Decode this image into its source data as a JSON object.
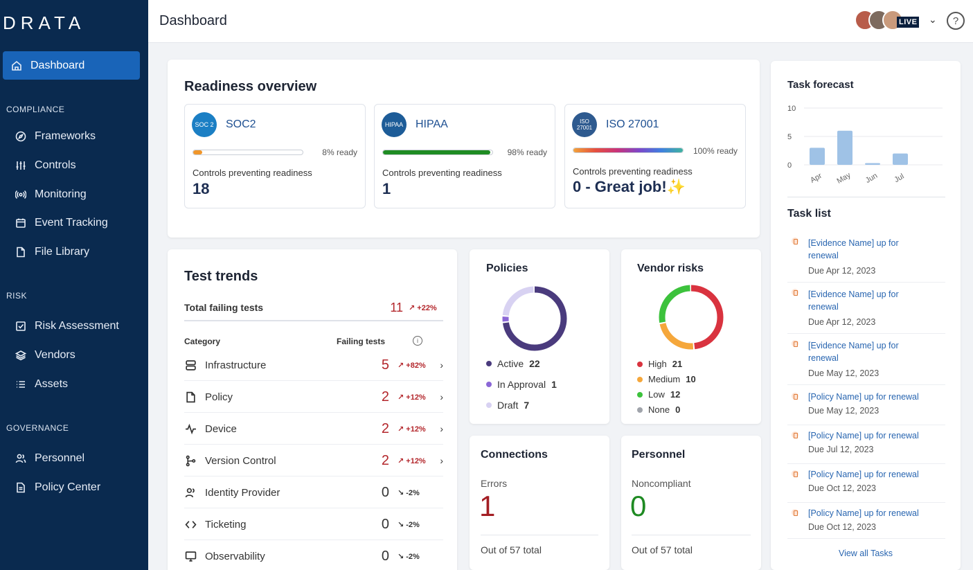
{
  "sidebar": {
    "logo": "DRATA",
    "active": {
      "label": "Dashboard",
      "icon": "home-icon"
    },
    "sections": [
      {
        "title": "COMPLIANCE",
        "items": [
          {
            "label": "Frameworks",
            "icon": "compass-icon"
          },
          {
            "label": "Controls",
            "icon": "sliders-icon"
          },
          {
            "label": "Monitoring",
            "icon": "broadcast-icon"
          },
          {
            "label": "Event Tracking",
            "icon": "calendar-icon"
          },
          {
            "label": "File Library",
            "icon": "file-icon"
          }
        ]
      },
      {
        "title": "RISK",
        "items": [
          {
            "label": "Risk Assessment",
            "icon": "checkbox-icon"
          },
          {
            "label": "Vendors",
            "icon": "layers-icon"
          },
          {
            "label": "Assets",
            "icon": "list-icon"
          }
        ]
      },
      {
        "title": "GOVERNANCE",
        "items": [
          {
            "label": "Personnel",
            "icon": "people-icon"
          },
          {
            "label": "Policy Center",
            "icon": "document-icon"
          }
        ]
      }
    ]
  },
  "header": {
    "title": "Dashboard",
    "live": "LIVE",
    "help": "?"
  },
  "readiness": {
    "title": "Readiness overview",
    "frameworks": [
      {
        "badge": "SOC 2",
        "name": "SOC2",
        "pct": "8% ready",
        "progress": 0.08,
        "color": "#f0962a",
        "sub": "Controls preventing readiness",
        "count": "18"
      },
      {
        "badge": "HIPAA",
        "name": "HIPAA",
        "pct": "98% ready",
        "progress": 0.98,
        "color": "#1f8c23",
        "sub": "Controls preventing readiness",
        "count": "1"
      },
      {
        "badge": "ISO 27001",
        "name": "ISO 27001",
        "pct": "100% ready",
        "progress": 1.0,
        "color": "rainbow",
        "sub": "Controls preventing readiness",
        "count": "0 - Great job!✨"
      }
    ]
  },
  "trends": {
    "title": "Test trends",
    "total_label": "Total failing tests",
    "total_count": "11",
    "total_trend": "↗ +22%",
    "col_category": "Category",
    "col_failing": "Failing tests",
    "rows": [
      {
        "label": "Infrastructure",
        "count": "5",
        "trend": "↗ +82%",
        "icon": "server-icon",
        "failing": true
      },
      {
        "label": "Policy",
        "count": "2",
        "trend": "↗ +12%",
        "icon": "file-icon",
        "failing": true
      },
      {
        "label": "Device",
        "count": "2",
        "trend": "↗ +12%",
        "icon": "pulse-icon",
        "failing": true
      },
      {
        "label": "Version Control",
        "count": "2",
        "trend": "↗ +12%",
        "icon": "branch-icon",
        "failing": true
      },
      {
        "label": "Identity Provider",
        "count": "0",
        "trend": "↘ -2%",
        "icon": "people-icon",
        "failing": false
      },
      {
        "label": "Ticketing",
        "count": "0",
        "trend": "↘ -2%",
        "icon": "code-icon",
        "failing": false
      },
      {
        "label": "Observability",
        "count": "0",
        "trend": "↘ -2%",
        "icon": "monitor-icon",
        "failing": false
      }
    ]
  },
  "policies": {
    "title": "Policies",
    "items": [
      {
        "label": "Active",
        "value": "22",
        "color": "#4a3b7d"
      },
      {
        "label": "In Approval",
        "value": "1",
        "color": "#8b67d6"
      },
      {
        "label": "Draft",
        "value": "7",
        "color": "#d8d2f2"
      }
    ]
  },
  "vendors": {
    "title": "Vendor risks",
    "items": [
      {
        "label": "High",
        "value": "21",
        "color": "#d9333f"
      },
      {
        "label": "Medium",
        "value": "10",
        "color": "#f5a73b"
      },
      {
        "label": "Low",
        "value": "12",
        "color": "#3cc23c"
      },
      {
        "label": "None",
        "value": "0",
        "color": "#a0a4ab"
      }
    ]
  },
  "connections": {
    "title": "Connections",
    "label": "Errors",
    "value": "1",
    "footer": "Out of 57 total"
  },
  "personnel": {
    "title": "Personnel",
    "label": "Noncompliant",
    "value": "0",
    "footer": "Out of 57 total"
  },
  "forecast": {
    "title": "Task forecast",
    "chart_data": {
      "type": "bar",
      "categories": [
        "Apr",
        "May",
        "Jun",
        "Jul"
      ],
      "values": [
        3,
        6,
        0.3,
        2
      ],
      "ylim": [
        0,
        10
      ],
      "yticks": [
        "10",
        "5",
        "0"
      ]
    }
  },
  "tasklist": {
    "title": "Task list",
    "items": [
      {
        "text": "[Evidence Name] up for renewal",
        "due": "Due Apr 12, 2023"
      },
      {
        "text": "[Evidence Name] up for renewal",
        "due": "Due Apr 12, 2023"
      },
      {
        "text": "[Evidence Name] up for renewal",
        "due": "Due May 12, 2023"
      },
      {
        "text": "[Policy Name] up for renewal",
        "due": "Due May 12, 2023"
      },
      {
        "text": "[Policy Name] up for renewal",
        "due": "Due Jul 12, 2023"
      },
      {
        "text": "[Policy Name] up for renewal",
        "due": "Due Oct 12, 2023"
      },
      {
        "text": "[Policy Name] up for renewal",
        "due": "Due Oct 12, 2023"
      }
    ],
    "view_all": "View all Tasks"
  }
}
